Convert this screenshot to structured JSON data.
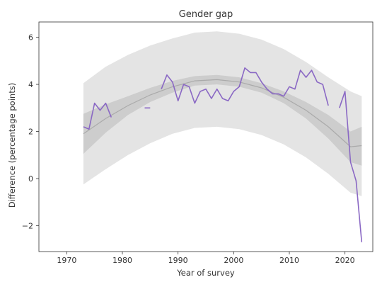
{
  "chart_data": {
    "type": "line",
    "title": "Gender gap",
    "xlabel": "Year of survey",
    "ylabel": "Difference (percentage points)",
    "xlim": [
      1965,
      2025
    ],
    "ylim": [
      -3.1,
      6.65
    ],
    "x_ticks": [
      1970,
      1980,
      1990,
      2000,
      2010,
      2020
    ],
    "y_ticks": [
      -2,
      0,
      2,
      4,
      6
    ],
    "y_tick_labels": [
      "−2",
      "0",
      "2",
      "4",
      "6"
    ],
    "grid": false,
    "legend": "none",
    "colors": {
      "series": "#8a68c4",
      "fit": "#aaaaaa",
      "outer_band": "#e4e4e4",
      "inner_band": "#cdcdcd",
      "axes": "#333333"
    },
    "series": [
      {
        "points": [
          [
            1973,
            2.2
          ],
          [
            1974,
            2.1
          ],
          [
            1975,
            3.2
          ],
          [
            1976,
            2.9
          ],
          [
            1977,
            3.2
          ],
          [
            1978,
            2.6
          ],
          [
            null,
            null
          ],
          [
            1984,
            3.0
          ],
          [
            1985,
            3.0
          ],
          [
            null,
            null
          ],
          [
            1987,
            3.8
          ],
          [
            1988,
            4.4
          ],
          [
            1989,
            4.1
          ],
          [
            1990,
            3.3
          ],
          [
            1991,
            4.0
          ],
          [
            1992,
            3.9
          ],
          [
            1993,
            3.2
          ],
          [
            1994,
            3.7
          ],
          [
            1995,
            3.8
          ],
          [
            1996,
            3.4
          ],
          [
            1997,
            3.8
          ],
          [
            1998,
            3.4
          ],
          [
            1999,
            3.3
          ],
          [
            2000,
            3.7
          ],
          [
            2001,
            3.9
          ],
          [
            2002,
            4.7
          ],
          [
            2003,
            4.5
          ],
          [
            2004,
            4.5
          ],
          [
            2005,
            4.1
          ],
          [
            2006,
            3.8
          ],
          [
            2007,
            3.6
          ],
          [
            2008,
            3.6
          ],
          [
            2009,
            3.5
          ],
          [
            2010,
            3.9
          ],
          [
            2011,
            3.8
          ],
          [
            2012,
            4.6
          ],
          [
            2013,
            4.3
          ],
          [
            2014,
            4.6
          ],
          [
            2015,
            4.1
          ],
          [
            2016,
            4.0
          ],
          [
            2017,
            3.1
          ],
          [
            null,
            null
          ],
          [
            2019,
            3.0
          ],
          [
            2020,
            3.7
          ],
          [
            2021,
            0.7
          ],
          [
            2022,
            -0.1
          ],
          [
            2023,
            -2.7
          ]
        ]
      }
    ],
    "fit": {
      "x": [
        1973,
        1977,
        1981,
        1985,
        1989,
        1993,
        1997,
        2001,
        2005,
        2009,
        2013,
        2017,
        2021,
        2023
      ],
      "y": [
        1.9,
        2.55,
        3.1,
        3.55,
        3.9,
        4.15,
        4.2,
        4.1,
        3.85,
        3.45,
        2.9,
        2.2,
        1.35,
        1.4
      ],
      "inner_low": [
        1.05,
        1.95,
        2.7,
        3.25,
        3.65,
        3.95,
        4.0,
        3.9,
        3.65,
        3.2,
        2.55,
        1.7,
        0.7,
        0.55
      ],
      "inner_high": [
        2.75,
        3.15,
        3.5,
        3.85,
        4.15,
        4.35,
        4.4,
        4.3,
        4.05,
        3.7,
        3.25,
        2.7,
        2.0,
        2.2
      ],
      "outer_low": [
        -0.25,
        0.4,
        1.0,
        1.5,
        1.9,
        2.15,
        2.2,
        2.1,
        1.85,
        1.45,
        0.9,
        0.2,
        -0.6,
        -0.75
      ],
      "outer_high": [
        4.05,
        4.75,
        5.25,
        5.65,
        5.95,
        6.2,
        6.25,
        6.15,
        5.9,
        5.5,
        4.95,
        4.3,
        3.7,
        3.5
      ]
    }
  }
}
